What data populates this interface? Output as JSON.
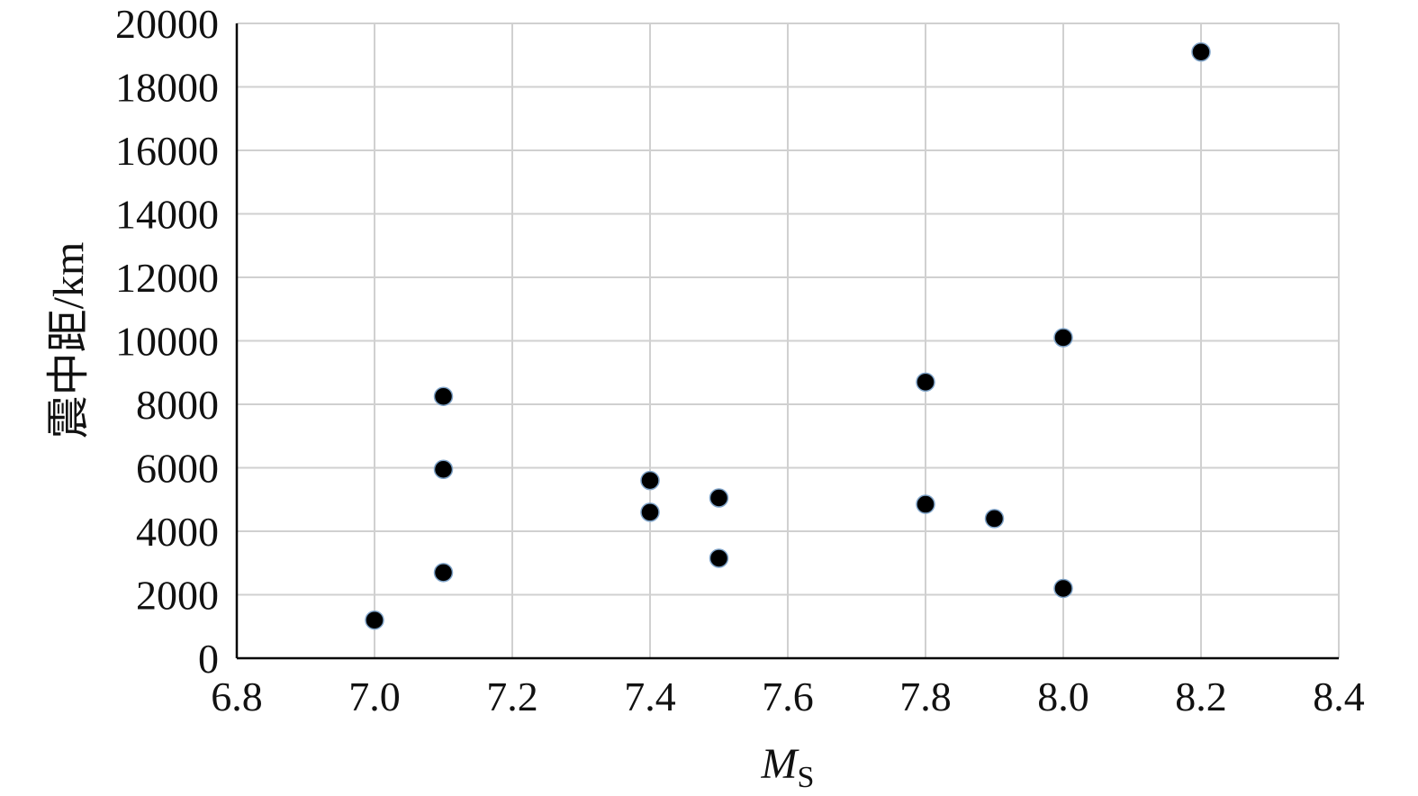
{
  "chart_data": {
    "type": "scatter",
    "title": "",
    "xlabel": "M",
    "xlabel_sub": "S",
    "ylabel": "震中距/km",
    "xlim": [
      6.8,
      8.4
    ],
    "ylim": [
      0,
      20000
    ],
    "x_ticks": [
      "6.8",
      "7.0",
      "7.2",
      "7.4",
      "7.6",
      "7.8",
      "8.0",
      "8.2",
      "8.4"
    ],
    "y_ticks": [
      "0",
      "2000",
      "4000",
      "6000",
      "8000",
      "10000",
      "12000",
      "14000",
      "16000",
      "18000",
      "20000"
    ],
    "grid": true,
    "legend": "none",
    "marker_color": "#000000",
    "grid_color": "#d0d0d0",
    "points": [
      {
        "x": 7.0,
        "y": 1200
      },
      {
        "x": 7.1,
        "y": 2700
      },
      {
        "x": 7.1,
        "y": 5950
      },
      {
        "x": 7.1,
        "y": 8250
      },
      {
        "x": 7.4,
        "y": 4600
      },
      {
        "x": 7.4,
        "y": 5600
      },
      {
        "x": 7.5,
        "y": 3150
      },
      {
        "x": 7.5,
        "y": 5050
      },
      {
        "x": 7.8,
        "y": 4850
      },
      {
        "x": 7.8,
        "y": 8700
      },
      {
        "x": 7.9,
        "y": 4400
      },
      {
        "x": 8.0,
        "y": 2200
      },
      {
        "x": 8.0,
        "y": 10100
      },
      {
        "x": 8.2,
        "y": 19100
      }
    ]
  }
}
